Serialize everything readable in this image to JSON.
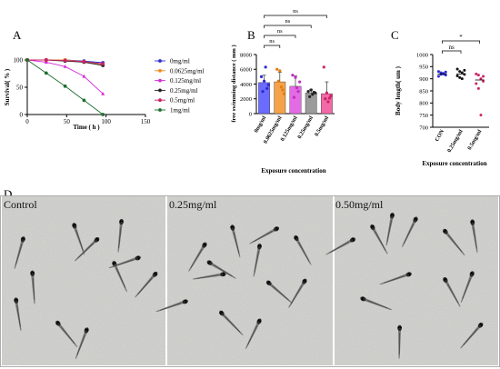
{
  "chart_data": [
    {
      "panel": "A",
      "type": "line",
      "ylabel": "Survival( % )",
      "xlabel": "Time ( h )",
      "xticks": [
        0,
        50,
        100,
        150
      ],
      "yticks": [
        0,
        50,
        100
      ],
      "xlim": [
        0,
        150
      ],
      "ylim": [
        0,
        100
      ],
      "legend_position": "right",
      "x": [
        0,
        24,
        48,
        72,
        96
      ],
      "series": [
        {
          "name": "0mg/ml",
          "color": "#2b2bd4",
          "marker": "circle",
          "values": [
            100,
            100,
            100,
            98,
            95
          ]
        },
        {
          "name": "0.0625mg/ml",
          "color": "#f08a1c",
          "marker": "square",
          "values": [
            100,
            100,
            100,
            97,
            92
          ]
        },
        {
          "name": "0.125mg/ml",
          "color": "#d62ad6",
          "marker": "triangle",
          "values": [
            100,
            96,
            88,
            70,
            38
          ]
        },
        {
          "name": "0.25mg/ml",
          "color": "#222222",
          "marker": "circle",
          "values": [
            100,
            100,
            98,
            96,
            90
          ]
        },
        {
          "name": "0.5mg/ml",
          "color": "#cc2366",
          "marker": "circle",
          "values": [
            100,
            100,
            99,
            97,
            93
          ]
        },
        {
          "name": "1mg/ml",
          "color": "#1e6e2e",
          "marker": "circle",
          "values": [
            100,
            76,
            52,
            26,
            0
          ]
        }
      ]
    },
    {
      "panel": "B",
      "type": "bar",
      "ylabel": "free swimming distance ( mm )",
      "xlabel": "Exposure concentration",
      "ylim": [
        0,
        8000
      ],
      "yticks": [
        0,
        2000,
        4000,
        6000,
        8000
      ],
      "categories": [
        "0mg/ml",
        "0.0625mg/ml",
        "0.125mg/ml",
        "0.25mg/ml",
        "0.5mg/ml"
      ],
      "values": [
        4200,
        4300,
        3700,
        2800,
        2700
      ],
      "errors": [
        1000,
        1300,
        1400,
        500,
        1600
      ],
      "colors": [
        "#6b6bff",
        "#f5a24a",
        "#e36be3",
        "#9b9b9b",
        "#f26aa8"
      ],
      "points": [
        [
          5000,
          4400,
          3400,
          3000,
          6300,
          3900
        ],
        [
          6000,
          5800,
          3200,
          4400,
          3600,
          2700
        ],
        [
          5200,
          4900,
          3000,
          2200,
          3500,
          4300
        ],
        [
          3000,
          3200,
          2900,
          2300,
          2600,
          2800
        ],
        [
          6300,
          2800,
          2100,
          2000,
          1600,
          2400
        ]
      ],
      "significance": [
        {
          "from": 0,
          "to": 1,
          "label": "ns"
        },
        {
          "from": 0,
          "to": 2,
          "label": "ns"
        },
        {
          "from": 0,
          "to": 3,
          "label": "ns"
        },
        {
          "from": 0,
          "to": 4,
          "label": "ns"
        }
      ]
    },
    {
      "panel": "C",
      "type": "scatter",
      "ylabel": "Body length( um )",
      "xlabel": "Exposure concentration",
      "ylim": [
        700,
        1000
      ],
      "yticks": [
        700,
        750,
        800,
        850,
        900,
        950,
        1000
      ],
      "categories": [
        "CON",
        "0.25mg/ml",
        "0.5mg/ml"
      ],
      "colors": [
        "#2b2bd4",
        "#111111",
        "#cc2366"
      ],
      "points": [
        [
          930,
          925,
          920,
          915,
          910,
          918,
          922,
          928
        ],
        [
          940,
          930,
          925,
          918,
          912,
          905,
          900,
          935
        ],
        [
          920,
          915,
          900,
          890,
          880,
          860,
          750,
          910
        ]
      ],
      "means": [
        920,
        920,
        895
      ],
      "significance": [
        {
          "from": 0,
          "to": 1,
          "label": "ns"
        },
        {
          "from": 0,
          "to": 2,
          "label": "*"
        }
      ]
    }
  ],
  "panel_letters": {
    "a": "A",
    "b": "B",
    "c": "C",
    "d": "D"
  },
  "photos": [
    {
      "label": "Control"
    },
    {
      "label": "0.25mg/ml"
    },
    {
      "label": "0.50mg/ml"
    }
  ]
}
